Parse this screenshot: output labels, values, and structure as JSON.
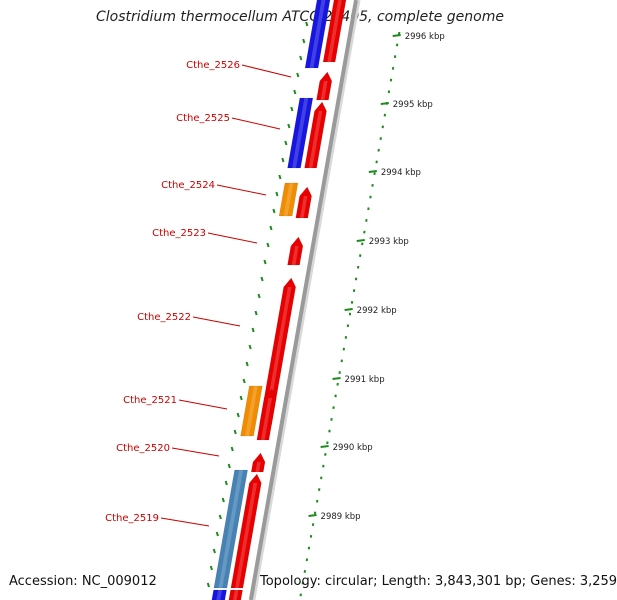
{
  "title": "Clostridium thermocellum ATCC 27405, complete genome",
  "accession": "Accession: NC_009012",
  "topology": "Topology: circular; Length: 3,843,301 bp; Genes: 3,259",
  "colors": {
    "backbone": "#9a9a9a",
    "cds_forward": "#e80000",
    "cds_reverse_blue": "#1616e0",
    "cds_orange": "#f08c00",
    "cds_steel": "#4682b4",
    "label": "#cc0000",
    "ruler": "#1d8a1d",
    "tick_text": "#222222"
  },
  "ruler_ticks": [
    "2996 kbp",
    "2995 kbp",
    "2994 kbp",
    "2993 kbp",
    "2992 kbp",
    "2991 kbp",
    "2990 kbp",
    "2989 kbp"
  ],
  "gene_labels": [
    "Cthe_2526",
    "Cthe_2525",
    "Cthe_2524",
    "Cthe_2523",
    "Cthe_2522",
    "Cthe_2521",
    "Cthe_2520",
    "Cthe_2519"
  ],
  "features": [
    {
      "id": "blue-top",
      "color": "cds_reverse_blue"
    },
    {
      "id": "red-top",
      "color": "cds_forward"
    },
    {
      "id": "red-2526",
      "color": "cds_forward"
    },
    {
      "id": "blue-2525",
      "color": "cds_reverse_blue"
    },
    {
      "id": "red-2525",
      "color": "cds_forward"
    },
    {
      "id": "orange-2524",
      "color": "cds_orange"
    },
    {
      "id": "red-2524",
      "color": "cds_forward"
    },
    {
      "id": "red-2523",
      "color": "cds_forward"
    },
    {
      "id": "red-2522",
      "color": "cds_forward"
    },
    {
      "id": "orange-2521",
      "color": "cds_orange"
    },
    {
      "id": "red-2521",
      "color": "cds_forward"
    },
    {
      "id": "red-2520",
      "color": "cds_forward"
    },
    {
      "id": "steel-2519",
      "color": "cds_steel"
    },
    {
      "id": "red-2519",
      "color": "cds_forward"
    },
    {
      "id": "blue-bottom",
      "color": "cds_reverse_blue"
    },
    {
      "id": "red-bottom",
      "color": "cds_forward"
    }
  ]
}
